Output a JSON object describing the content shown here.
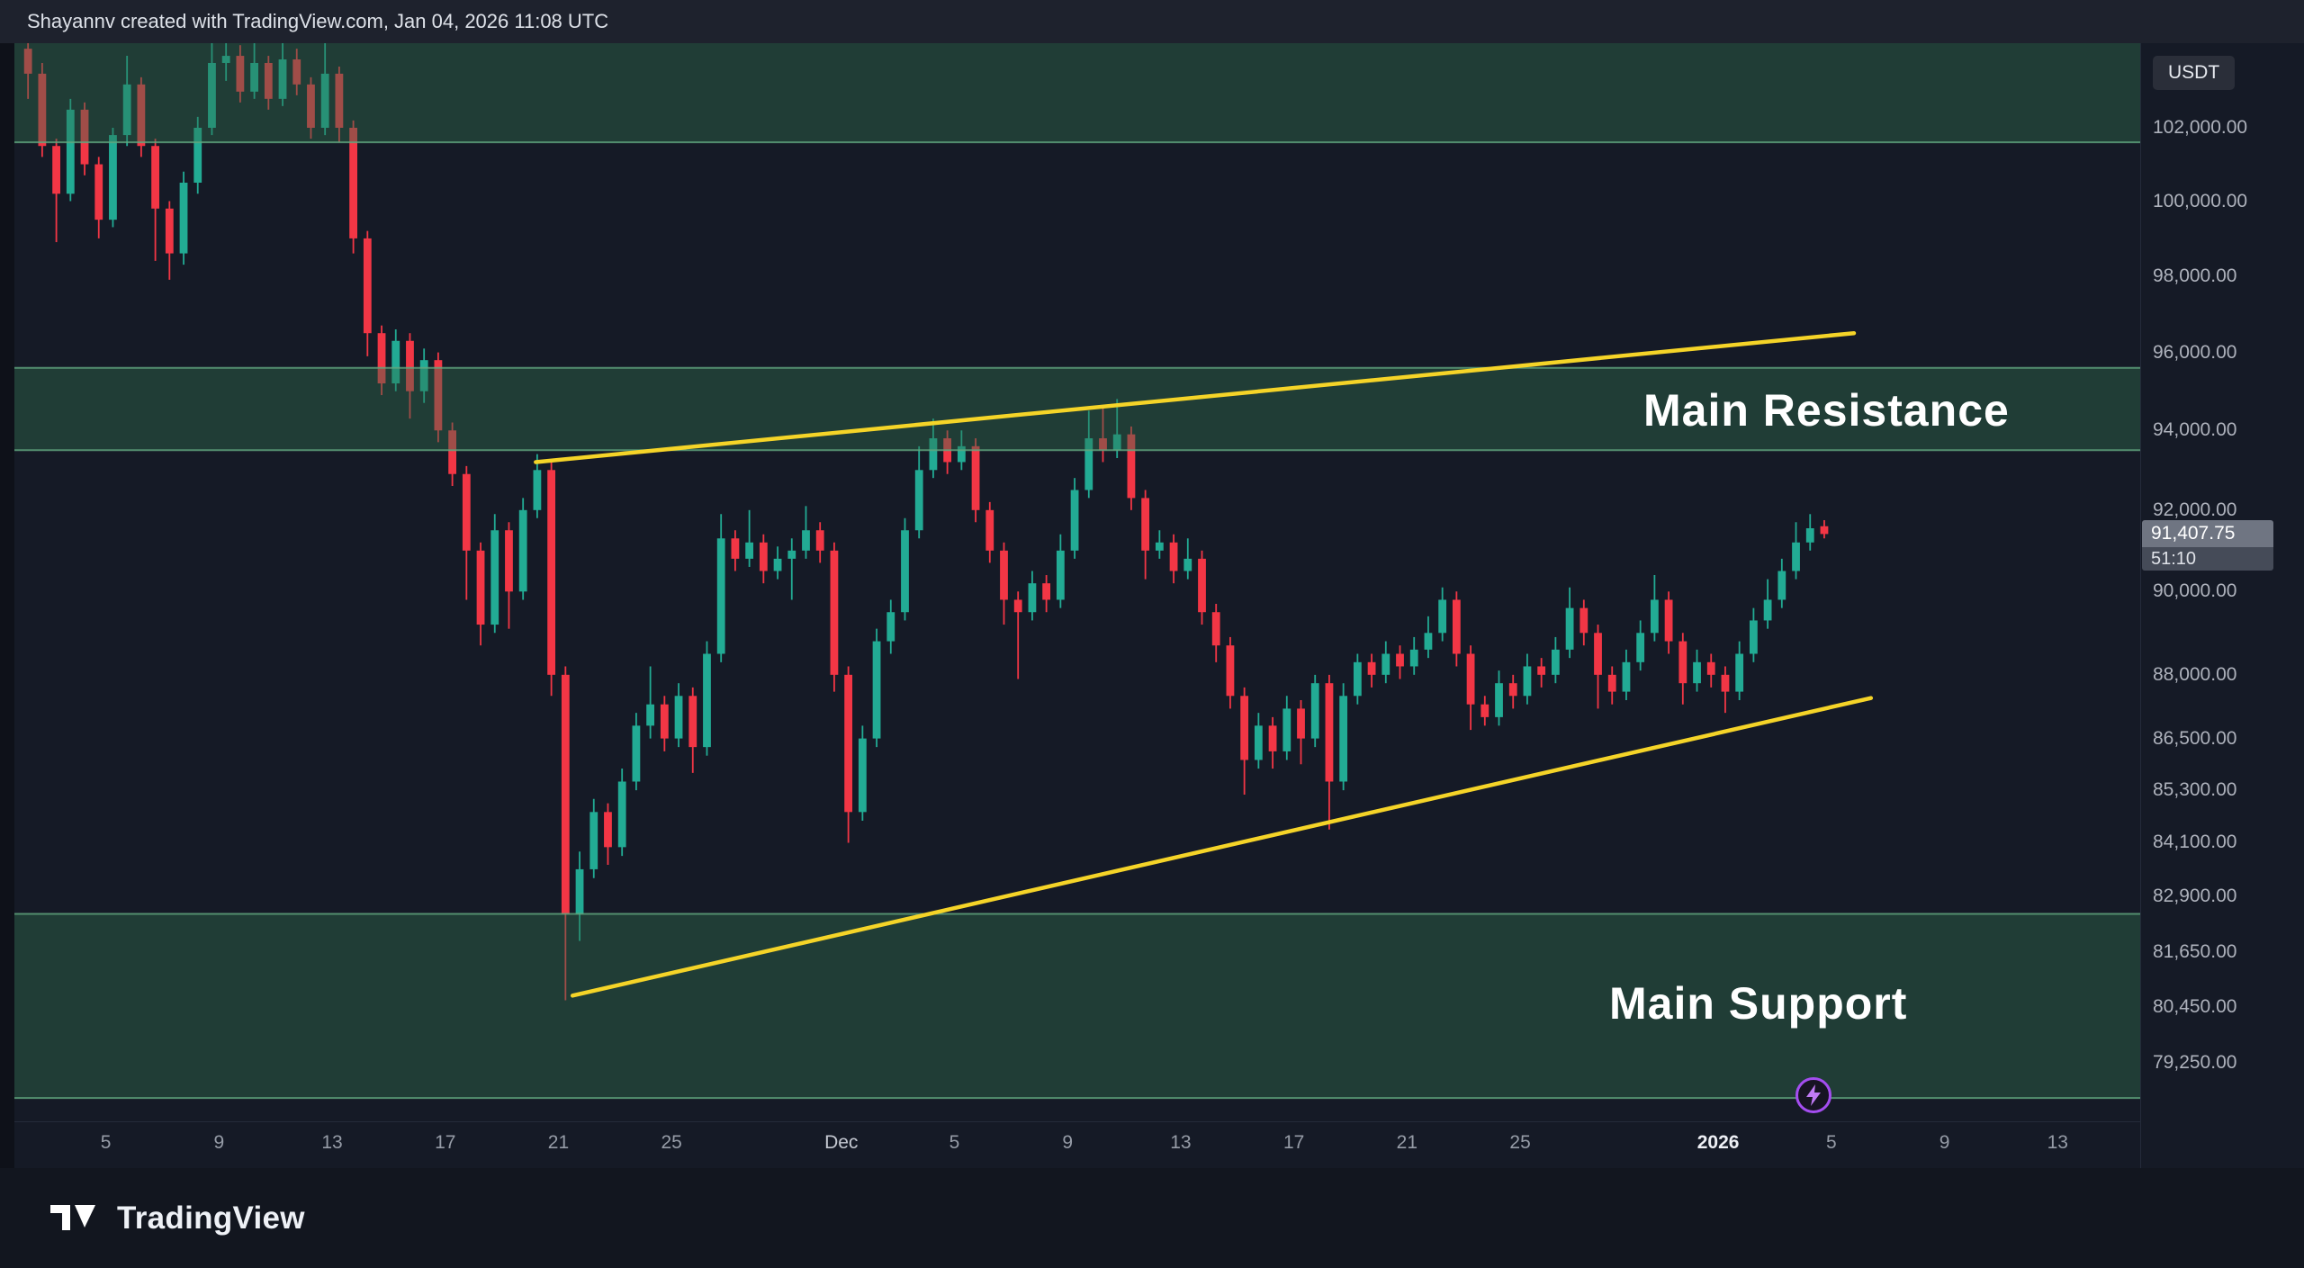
{
  "meta": {
    "attribution": "Shayannv created with TradingView.com, Jan 04, 2026 11:08 UTC"
  },
  "price_axis": {
    "currency_label": "USDT",
    "last_price": "91,407.75",
    "countdown": "51:10",
    "ticks": [
      "102,000.00",
      "100,000.00",
      "98,000.00",
      "96,000.00",
      "94,000.00",
      "92,000.00",
      "90,000.00",
      "88,000.00",
      "86,500.00",
      "85,300.00",
      "84,100.00",
      "82,900.00",
      "81,650.00",
      "80,450.00",
      "79,250.00"
    ]
  },
  "time_axis": {
    "ticks": [
      {
        "label": "5",
        "d": 3,
        "kind": "day"
      },
      {
        "label": "9",
        "d": 7,
        "kind": "day"
      },
      {
        "label": "13",
        "d": 11,
        "kind": "day"
      },
      {
        "label": "17",
        "d": 15,
        "kind": "day"
      },
      {
        "label": "21",
        "d": 19,
        "kind": "day"
      },
      {
        "label": "25",
        "d": 23,
        "kind": "day"
      },
      {
        "label": "Dec",
        "d": 29,
        "kind": "month"
      },
      {
        "label": "5",
        "d": 33,
        "kind": "day"
      },
      {
        "label": "9",
        "d": 37,
        "kind": "day"
      },
      {
        "label": "13",
        "d": 41,
        "kind": "day"
      },
      {
        "label": "17",
        "d": 45,
        "kind": "day"
      },
      {
        "label": "21",
        "d": 49,
        "kind": "day"
      },
      {
        "label": "25",
        "d": 53,
        "kind": "day"
      },
      {
        "label": "2026",
        "d": 60,
        "kind": "year"
      },
      {
        "label": "5",
        "d": 64,
        "kind": "day"
      },
      {
        "label": "9",
        "d": 68,
        "kind": "day"
      },
      {
        "label": "13",
        "d": 72,
        "kind": "day"
      }
    ]
  },
  "annotations": {
    "resistance_label": "Main Resistance",
    "support_label": "Main Support"
  },
  "branding": {
    "logo_text": "TradingView"
  },
  "chart_data": {
    "type": "candlestick",
    "interval": "12h",
    "scale": "logarithmic",
    "quote_currency": "USDT",
    "start_date": "2025-11-02",
    "end_date": "2026-01-04",
    "last_price": 91407.75,
    "ylim": [
      78000,
      104400
    ],
    "price_ticks": [
      102000,
      100000,
      98000,
      96000,
      94000,
      92000,
      90000,
      88000,
      86500,
      85300,
      84100,
      82900,
      81650,
      80450,
      79250
    ],
    "colors": {
      "up": "#22ab94",
      "down": "#f23645",
      "trendline": "#f5d428",
      "zone_fill": "rgba(47,110,77,0.42)",
      "zone_border": "rgba(98,168,128,0.8)",
      "accent_flash": "#a44df0"
    },
    "zones": [
      {
        "name": "upper-supply-zone",
        "price_from": 101600,
        "price_to": 106500
      },
      {
        "name": "main-resistance-zone",
        "label": "Main Resistance",
        "price_from": 93500,
        "price_to": 95600
      },
      {
        "name": "main-support-zone",
        "label": "Main Support",
        "price_from": 78500,
        "price_to": 82500
      }
    ],
    "trendlines": [
      {
        "name": "rising-resistance-trendline",
        "from_day": 18.2,
        "from_price": 93200,
        "to_day": 64.8,
        "to_price": 96500
      },
      {
        "name": "rising-support-trendline",
        "from_day": 19.5,
        "from_price": 80700,
        "to_day": 65.4,
        "to_price": 87450
      }
    ],
    "candles_ohlc": [
      [
        104200,
        104600,
        102800,
        103500
      ],
      [
        103500,
        103800,
        101200,
        101500
      ],
      [
        101500,
        101700,
        98900,
        100200
      ],
      [
        100200,
        102800,
        100000,
        102500
      ],
      [
        102500,
        102700,
        100700,
        101000
      ],
      [
        101000,
        101200,
        99000,
        99500
      ],
      [
        99500,
        102000,
        99300,
        101800
      ],
      [
        101800,
        104000,
        101500,
        103200
      ],
      [
        103200,
        103400,
        101200,
        101500
      ],
      [
        101500,
        101700,
        98400,
        99800
      ],
      [
        99800,
        100000,
        97900,
        98600
      ],
      [
        98600,
        100800,
        98300,
        100500
      ],
      [
        100500,
        102300,
        100200,
        102000
      ],
      [
        102000,
        104800,
        101800,
        103800
      ],
      [
        103800,
        105000,
        103300,
        104000
      ],
      [
        104000,
        104300,
        102700,
        103000
      ],
      [
        103000,
        104600,
        102800,
        103800
      ],
      [
        103800,
        104000,
        102500,
        102800
      ],
      [
        102800,
        104900,
        102600,
        103900
      ],
      [
        103900,
        104200,
        102900,
        103200
      ],
      [
        103200,
        103400,
        101700,
        102000
      ],
      [
        102000,
        104400,
        101800,
        103500
      ],
      [
        103500,
        103700,
        101600,
        102000
      ],
      [
        102000,
        102200,
        98600,
        99000
      ],
      [
        99000,
        99200,
        95900,
        96500
      ],
      [
        96500,
        96700,
        94900,
        95200
      ],
      [
        95200,
        96600,
        95000,
        96300
      ],
      [
        96300,
        96500,
        94300,
        95000
      ],
      [
        95000,
        96100,
        94700,
        95800
      ],
      [
        95800,
        96000,
        93700,
        94000
      ],
      [
        94000,
        94200,
        92600,
        92900
      ],
      [
        92900,
        93100,
        89800,
        91000
      ],
      [
        91000,
        91200,
        88700,
        89200
      ],
      [
        89200,
        91900,
        89000,
        91500
      ],
      [
        91500,
        91700,
        89100,
        90000
      ],
      [
        90000,
        92300,
        89800,
        92000
      ],
      [
        92000,
        93400,
        91800,
        93000
      ],
      [
        93000,
        93200,
        87500,
        88000
      ],
      [
        88000,
        88200,
        80600,
        82500
      ],
      [
        82500,
        83900,
        81900,
        83500
      ],
      [
        83500,
        85100,
        83300,
        84800
      ],
      [
        84800,
        85000,
        83600,
        84000
      ],
      [
        84000,
        85800,
        83800,
        85500
      ],
      [
        85500,
        87100,
        85300,
        86800
      ],
      [
        86800,
        88200,
        86500,
        87300
      ],
      [
        87300,
        87500,
        86200,
        86500
      ],
      [
        86500,
        87800,
        86300,
        87500
      ],
      [
        87500,
        87700,
        85700,
        86300
      ],
      [
        86300,
        88800,
        86100,
        88500
      ],
      [
        88500,
        91900,
        88300,
        91300
      ],
      [
        91300,
        91500,
        90500,
        90800
      ],
      [
        90800,
        92000,
        90600,
        91200
      ],
      [
        91200,
        91400,
        90200,
        90500
      ],
      [
        90500,
        91100,
        90300,
        90800
      ],
      [
        90800,
        91300,
        89800,
        91000
      ],
      [
        91000,
        92100,
        90800,
        91500
      ],
      [
        91500,
        91700,
        90700,
        91000
      ],
      [
        91000,
        91200,
        87600,
        88000
      ],
      [
        88000,
        88200,
        84100,
        84800
      ],
      [
        84800,
        86800,
        84600,
        86500
      ],
      [
        86500,
        89100,
        86300,
        88800
      ],
      [
        88800,
        89800,
        88500,
        89500
      ],
      [
        89500,
        91800,
        89300,
        91500
      ],
      [
        91500,
        93600,
        91300,
        93000
      ],
      [
        93000,
        94300,
        92800,
        93800
      ],
      [
        93800,
        94000,
        92900,
        93200
      ],
      [
        93200,
        94000,
        93000,
        93600
      ],
      [
        93600,
        93800,
        91700,
        92000
      ],
      [
        92000,
        92200,
        90700,
        91000
      ],
      [
        91000,
        91200,
        89200,
        89800
      ],
      [
        89800,
        90000,
        87900,
        89500
      ],
      [
        89500,
        90500,
        89300,
        90200
      ],
      [
        90200,
        90400,
        89500,
        89800
      ],
      [
        89800,
        91400,
        89600,
        91000
      ],
      [
        91000,
        92800,
        90800,
        92500
      ],
      [
        92500,
        94500,
        92300,
        93800
      ],
      [
        93800,
        94600,
        93200,
        93500
      ],
      [
        93500,
        94800,
        93300,
        93900
      ],
      [
        93900,
        94100,
        92000,
        92300
      ],
      [
        92300,
        92500,
        90300,
        91000
      ],
      [
        91000,
        91500,
        90800,
        91200
      ],
      [
        91200,
        91400,
        90200,
        90500
      ],
      [
        90500,
        91300,
        90300,
        90800
      ],
      [
        90800,
        91000,
        89200,
        89500
      ],
      [
        89500,
        89700,
        88300,
        88700
      ],
      [
        88700,
        88900,
        87200,
        87500
      ],
      [
        87500,
        87700,
        85200,
        86000
      ],
      [
        86000,
        87100,
        85800,
        86800
      ],
      [
        86800,
        87000,
        85800,
        86200
      ],
      [
        86200,
        87500,
        86000,
        87200
      ],
      [
        87200,
        87400,
        85900,
        86500
      ],
      [
        86500,
        88000,
        86300,
        87800
      ],
      [
        87800,
        88000,
        84400,
        85500
      ],
      [
        85500,
        87800,
        85300,
        87500
      ],
      [
        87500,
        88500,
        87300,
        88300
      ],
      [
        88300,
        88500,
        87700,
        88000
      ],
      [
        88000,
        88800,
        87800,
        88500
      ],
      [
        88500,
        88700,
        87900,
        88200
      ],
      [
        88200,
        88900,
        88000,
        88600
      ],
      [
        88600,
        89400,
        88400,
        89000
      ],
      [
        89000,
        90100,
        88800,
        89800
      ],
      [
        89800,
        90000,
        88200,
        88500
      ],
      [
        88500,
        88700,
        86700,
        87300
      ],
      [
        87300,
        87500,
        86800,
        87000
      ],
      [
        87000,
        88100,
        86800,
        87800
      ],
      [
        87800,
        88000,
        87200,
        87500
      ],
      [
        87500,
        88500,
        87300,
        88200
      ],
      [
        88200,
        88400,
        87700,
        88000
      ],
      [
        88000,
        88900,
        87800,
        88600
      ],
      [
        88600,
        90100,
        88400,
        89600
      ],
      [
        89600,
        89800,
        88700,
        89000
      ],
      [
        89000,
        89200,
        87200,
        88000
      ],
      [
        88000,
        88200,
        87300,
        87600
      ],
      [
        87600,
        88600,
        87400,
        88300
      ],
      [
        88300,
        89300,
        88100,
        89000
      ],
      [
        89000,
        90400,
        88800,
        89800
      ],
      [
        89800,
        90000,
        88500,
        88800
      ],
      [
        88800,
        89000,
        87300,
        87800
      ],
      [
        87800,
        88600,
        87600,
        88300
      ],
      [
        88300,
        88500,
        87700,
        88000
      ],
      [
        88000,
        88200,
        87100,
        87600
      ],
      [
        87600,
        88800,
        87400,
        88500
      ],
      [
        88500,
        89600,
        88300,
        89300
      ],
      [
        89300,
        90300,
        89100,
        89800
      ],
      [
        89800,
        90800,
        89600,
        90500
      ],
      [
        90500,
        91700,
        90300,
        91200
      ],
      [
        91200,
        91900,
        91000,
        91550
      ],
      [
        91600,
        91750,
        91300,
        91407.75
      ]
    ]
  }
}
